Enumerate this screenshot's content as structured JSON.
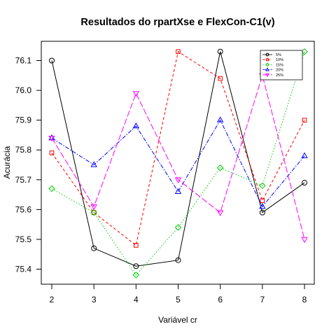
{
  "chart_data": {
    "type": "line",
    "title": "Resultados do rpartXse e FlexCon-C1(v)",
    "xlabel": "Variável cr",
    "ylabel": "Acurácia",
    "x": [
      2,
      3,
      4,
      5,
      6,
      7,
      8
    ],
    "xlim": [
      2,
      8
    ],
    "ylim": [
      75.35,
      76.15
    ],
    "yticks": [
      75.4,
      75.5,
      75.6,
      75.7,
      75.8,
      75.9,
      76.0,
      76.1
    ],
    "grid": false,
    "legend_position": "top-right",
    "series": [
      {
        "name": "5%",
        "color": "#000000",
        "dash": "",
        "marker": "circle",
        "values": [
          76.1,
          75.47,
          75.41,
          75.43,
          76.13,
          75.59,
          75.69
        ]
      },
      {
        "name": "10%",
        "color": "#ff0000",
        "dash": "4,3",
        "marker": "square",
        "values": [
          75.79,
          75.59,
          75.48,
          76.13,
          76.04,
          75.63,
          75.9
        ]
      },
      {
        "name": "15%",
        "color": "#00cd00",
        "dash": "1.5,2.5",
        "marker": "diamond",
        "values": [
          75.67,
          75.59,
          75.38,
          75.54,
          75.74,
          75.68,
          76.13
        ]
      },
      {
        "name": "20%",
        "color": "#0000ff",
        "dash": "6,2,1.5,2",
        "marker": "triangle-up",
        "values": [
          75.84,
          75.75,
          75.88,
          75.66,
          75.9,
          75.61,
          75.78
        ]
      },
      {
        "name": "25%",
        "color": "#ff00ff",
        "dash": "9,3",
        "marker": "triangle-down",
        "values": [
          75.84,
          75.61,
          75.99,
          75.7,
          75.59,
          76.05,
          75.5
        ]
      }
    ]
  }
}
